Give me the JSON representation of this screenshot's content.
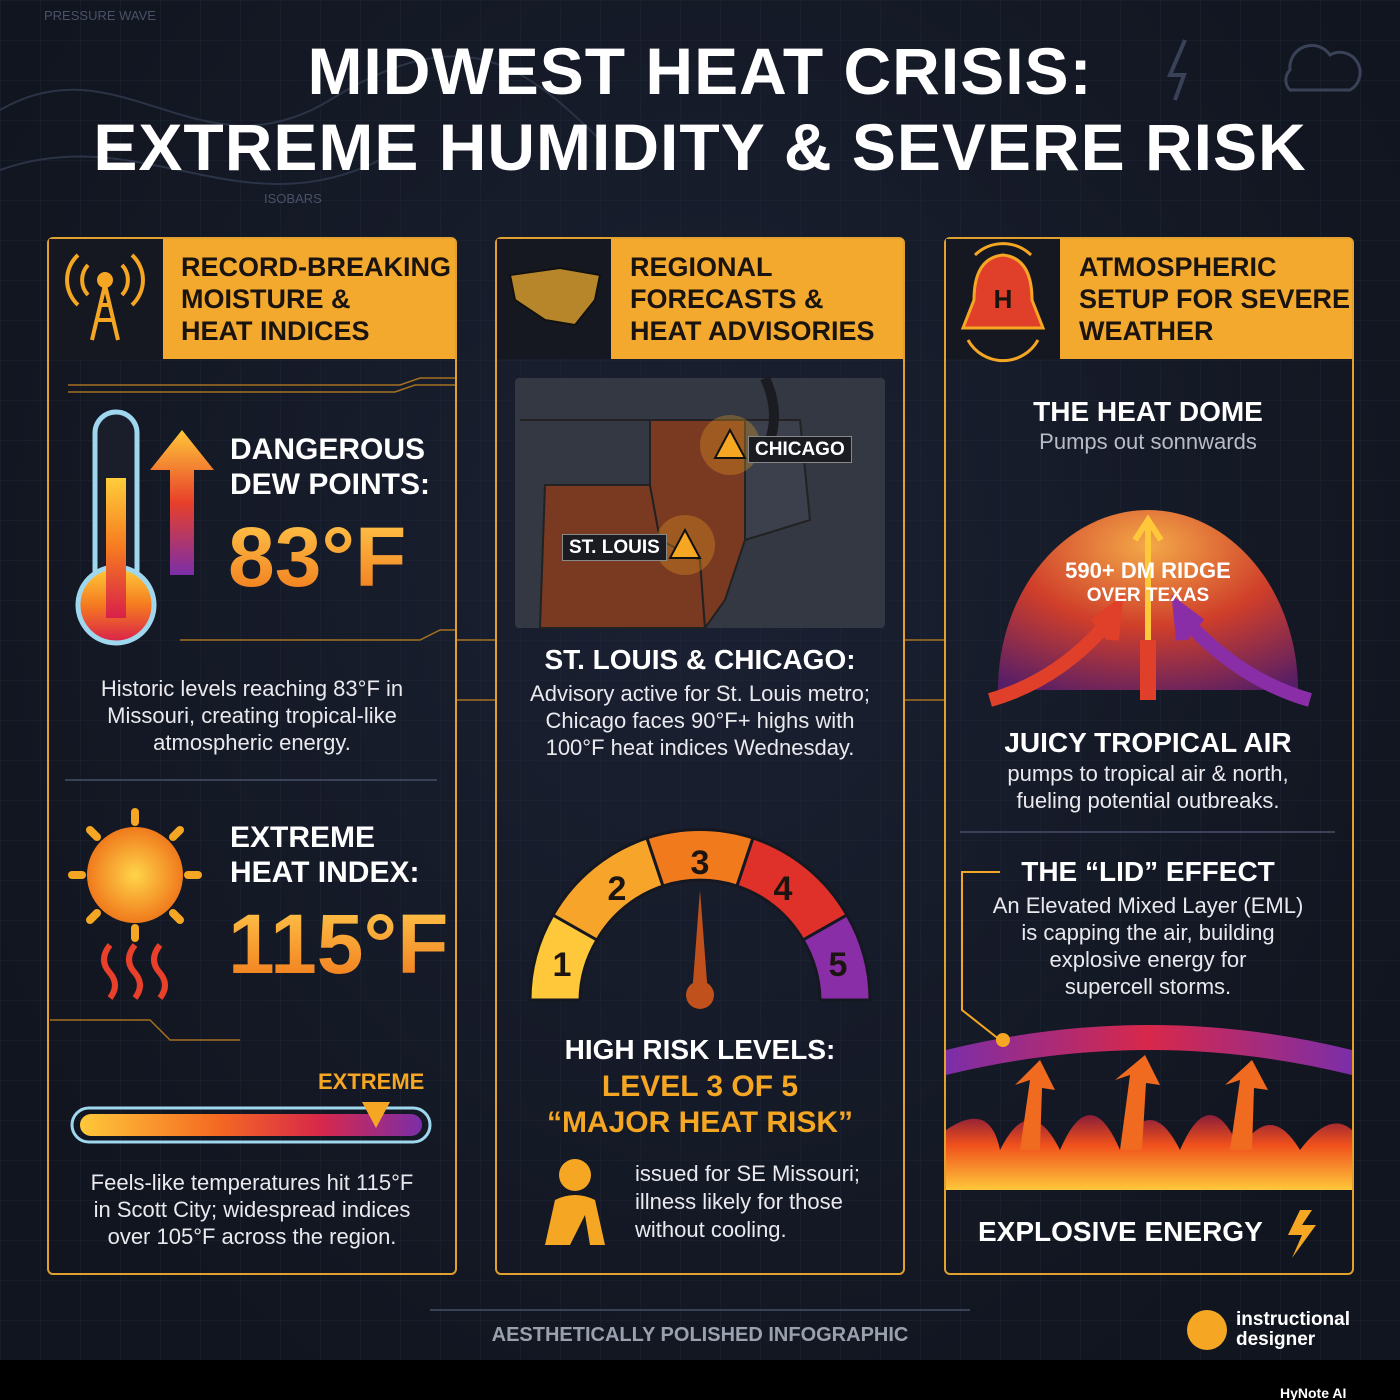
{
  "background_labels": [
    "PRESSURE WAVE",
    "ISOBARS"
  ],
  "header": {
    "title_lines": [
      "MIDWEST HEAT CRISIS:",
      "EXTREME HUMIDITY & SEVERE RISK"
    ]
  },
  "panels": [
    {
      "heading": [
        "RECORD-BREAKING",
        "MOISTURE &",
        "HEAT INDICES"
      ],
      "dew_point": {
        "label": [
          "DANGEROUS",
          "DEW POINTS:"
        ],
        "value": "83°F",
        "description": [
          "Historic levels reaching 83°F in",
          "Missouri, creating tropical-like",
          "atmospheric energy."
        ]
      },
      "heat_index": {
        "label": [
          "EXTREME",
          "HEAT INDEX:"
        ],
        "value": "115°F",
        "scale_label": "EXTREME",
        "description": [
          "Feels-like temperatures hit 115°F",
          "in Scott City; widespread indices",
          "over 105°F across the region."
        ]
      }
    },
    {
      "heading": [
        "REGIONAL",
        "FORECASTS &",
        "HEAT ADVISORIES"
      ],
      "map_labels": [
        "CHICAGO",
        "ST. LOUIS"
      ],
      "cities": {
        "title": "ST. LOUIS & CHICAGO:",
        "description": [
          "Advisory active for St. Louis metro;",
          "Chicago faces 90°F+ highs with",
          "100°F heat indices Wednesday."
        ]
      },
      "risk": {
        "levels": [
          "1",
          "2",
          "3",
          "4",
          "5"
        ],
        "title": "HIGH RISK LEVELS:",
        "level_text": "LEVEL 3 OF 5",
        "risk_name": "“MAJOR HEAT RISK”",
        "description": [
          "issued for SE Missouri;",
          "illness likely for those",
          "without cooling."
        ]
      }
    },
    {
      "heading": [
        "ATMOSPHERIC",
        "SETUP FOR SEVERE",
        "WEATHER"
      ],
      "dome": {
        "icon_letter": "H",
        "title": "THE HEAT DOME",
        "subtitle": "Pumps out sonnwards",
        "label": [
          "590+ DM RIDGE",
          "OVER TEXAS"
        ]
      },
      "tropical": {
        "title": "JUICY TROPICAL AIR",
        "description": [
          "pumps to tropical air & north,",
          "fueling potential outbreaks."
        ]
      },
      "lid": {
        "title": "THE “LID” EFFECT",
        "description": [
          "An Elevated Mixed Layer (EML)",
          "is capping the air, building",
          "explosive energy for",
          "supercell storms."
        ]
      },
      "footer_label": "EXPLOSIVE ENERGY"
    }
  ],
  "footer": {
    "caption": "AESTHETICALLY POLISHED INFOGRAPHIC",
    "logo": [
      "instructional",
      "designer"
    ]
  },
  "watermark": "HyNote AI"
}
